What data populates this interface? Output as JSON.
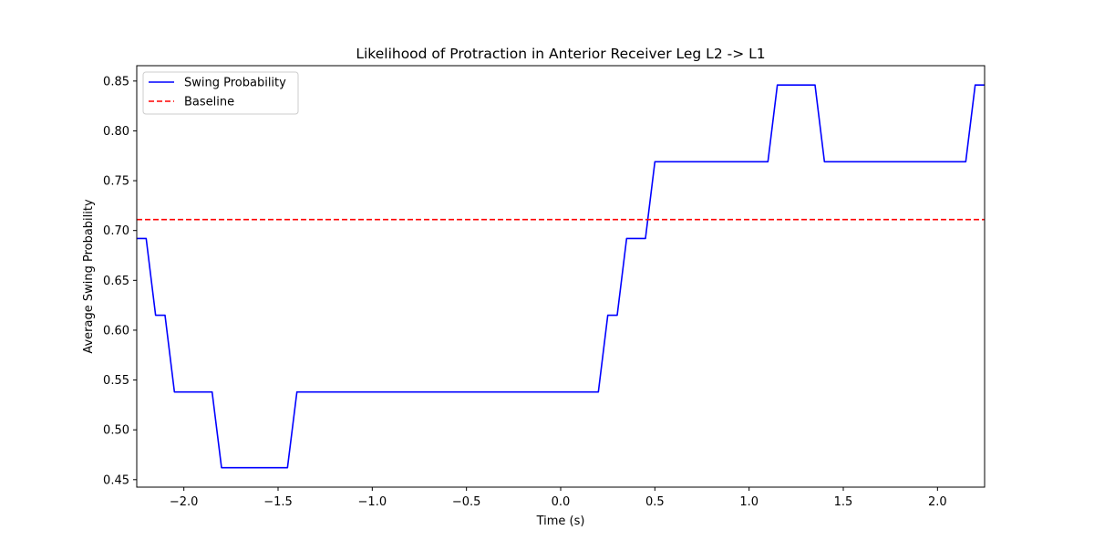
{
  "chart_data": {
    "type": "line",
    "title": "Likelihood of Protraction in Anterior Receiver Leg L2 -> L1",
    "xlabel": "Time (s)",
    "ylabel": "Average Swing Probability",
    "xlim": [
      -2.25,
      2.25
    ],
    "ylim": [
      0.4425,
      0.8654
    ],
    "xticks": [
      -2.0,
      -1.5,
      -1.0,
      -0.5,
      0.0,
      0.5,
      1.0,
      1.5,
      2.0
    ],
    "xtick_labels": [
      "−2.0",
      "−1.5",
      "−1.0",
      "−0.5",
      "0.0",
      "0.5",
      "1.0",
      "1.5",
      "2.0"
    ],
    "yticks": [
      0.45,
      0.5,
      0.55,
      0.6,
      0.65,
      0.7,
      0.75,
      0.8,
      0.85
    ],
    "ytick_labels": [
      "0.45",
      "0.50",
      "0.55",
      "0.60",
      "0.65",
      "0.70",
      "0.75",
      "0.80",
      "0.85"
    ],
    "grid": false,
    "legend_position": "top-left",
    "series": [
      {
        "name": "Swing Probability",
        "style": "solid",
        "color": "#0000ff",
        "x": [
          -2.25,
          -2.2,
          -2.15,
          -2.1,
          -2.05,
          -1.85,
          -1.8,
          -1.45,
          -1.4,
          0.2,
          0.25,
          0.3,
          0.35,
          0.45,
          0.5,
          1.1,
          1.15,
          1.35,
          1.4,
          2.15,
          2.2,
          2.25
        ],
        "y": [
          0.692,
          0.692,
          0.615,
          0.615,
          0.538,
          0.538,
          0.462,
          0.462,
          0.538,
          0.538,
          0.615,
          0.615,
          0.692,
          0.692,
          0.769,
          0.769,
          0.846,
          0.846,
          0.769,
          0.769,
          0.846,
          0.846
        ]
      },
      {
        "name": "Baseline",
        "style": "dashed",
        "color": "#ff0000",
        "x": [
          -2.25,
          2.25
        ],
        "y": [
          0.711,
          0.711
        ]
      }
    ]
  }
}
